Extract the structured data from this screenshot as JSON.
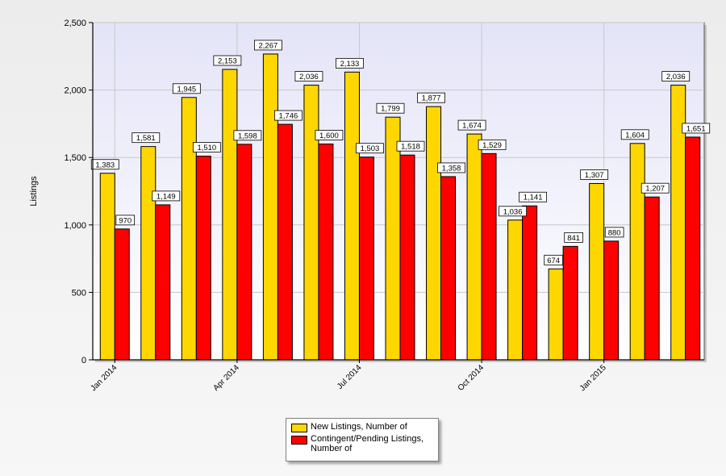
{
  "chart_data": {
    "type": "bar",
    "title": "",
    "xlabel": "",
    "ylabel": "Listings",
    "ylim": [
      0,
      2500
    ],
    "yticks": [
      "0",
      "500",
      "1,000",
      "1,500",
      "2,000",
      "2,500"
    ],
    "ytick_values": [
      0,
      500,
      1000,
      1500,
      2000,
      2500
    ],
    "grid": true,
    "legend_position": "bottom-center",
    "categories": [
      "Jan 2014",
      "Feb 2014",
      "Mar 2014",
      "Apr 2014",
      "May 2014",
      "Jun 2014",
      "Jul 2014",
      "Aug 2014",
      "Sep 2014",
      "Oct 2014",
      "Nov 2014",
      "Dec 2014",
      "Jan 2015",
      "Feb 2015",
      "Mar 2015"
    ],
    "shown_category_labels": [
      "Jan 2014",
      "Apr 2014",
      "Jul 2014",
      "Oct 2014",
      "Jan 2015"
    ],
    "series": [
      {
        "name": "New Listings, Number of",
        "color": "#FFD700",
        "values": [
          1383,
          1581,
          1945,
          2153,
          2267,
          2036,
          2133,
          1799,
          1877,
          1674,
          1036,
          674,
          1307,
          1604,
          2036
        ],
        "labels": [
          "1,383",
          "1,581",
          "1,945",
          "2,153",
          "2,267",
          "2,036",
          "2,133",
          "1,799",
          "1,877",
          "1,674",
          "1,036",
          "674",
          "1,307",
          "1,604",
          "2,036"
        ]
      },
      {
        "name": "Contingent/Pending Listings, Number of",
        "color": "#FF0000",
        "values": [
          970,
          1149,
          1510,
          1598,
          1746,
          1600,
          1503,
          1518,
          1358,
          1529,
          1141,
          841,
          880,
          1207,
          1651
        ],
        "labels": [
          "970",
          "1,149",
          "1,510",
          "1,598",
          "1,746",
          "1,600",
          "1,503",
          "1,518",
          "1,358",
          "1,529",
          "1,141",
          "841",
          "880",
          "1,207",
          "1,651"
        ]
      }
    ]
  },
  "legend": {
    "items": [
      {
        "label_line1": "New Listings, Number of",
        "label_line2": "",
        "color": "#FFD700"
      },
      {
        "label_line1": "Contingent/Pending Listings,",
        "label_line2": "Number of",
        "color": "#FF0000"
      }
    ]
  }
}
